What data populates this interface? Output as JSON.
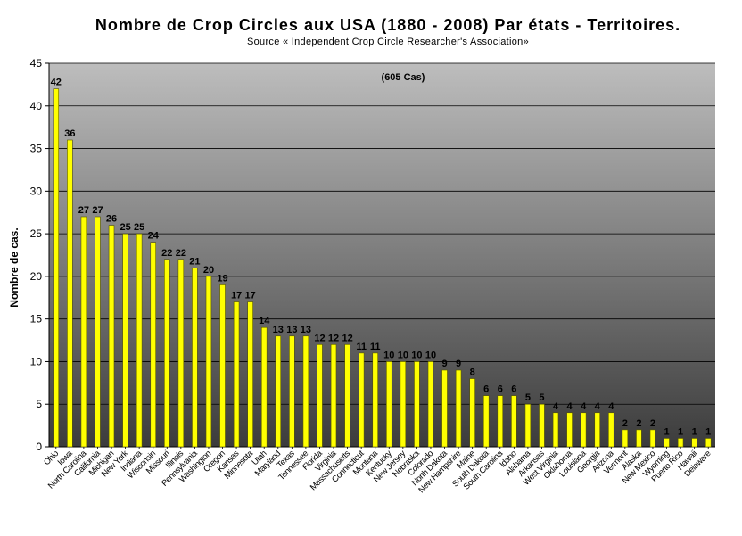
{
  "chart_data": {
    "type": "bar",
    "title": "Nombre de Crop Circles aux USA (1880 - 2008) Par états - Territoires.",
    "subtitle": "Source « Independent Crop Circle Researcher's Association»",
    "annotation": "(605 Cas)",
    "xlabel": "",
    "ylabel": "Nombre de cas.",
    "ylim": [
      0,
      45
    ],
    "yticks": [
      0,
      5,
      10,
      15,
      20,
      25,
      30,
      35,
      40,
      45
    ],
    "grid": true,
    "colors": {
      "bar": "#ffff00",
      "bar_edge": "#555500",
      "plot_top": "#bdbdbd",
      "plot_bottom": "#3c3c3c"
    },
    "categories": [
      "Ohio",
      "Iowa",
      "North Carolina",
      "California",
      "Michigan",
      "New York",
      "Indiana",
      "Wisconsin",
      "Missouri",
      "Illinois",
      "Pennsylvania",
      "Washington",
      "Oregon",
      "Kansas",
      "Minnesota",
      "Utah",
      "Maryland",
      "Texas",
      "Tennessee",
      "Florida",
      "Virginia",
      "Massachusetts",
      "Connecticut",
      "Montana",
      "Kentucky",
      "New Jersey",
      "Nebraska",
      "Colorado",
      "North Dakota",
      "New Hampshire",
      "Maine",
      "South Dakota",
      "South Carolina",
      "Idaho",
      "Alabama",
      "Arkansas",
      "West Virginia",
      "Oklahoma",
      "Louisiana",
      "Georgia",
      "Arizona",
      "Vermont",
      "Alaska",
      "New Mexico",
      "Wyoming",
      "Puerto Rico",
      "Hawaii",
      "Delaware"
    ],
    "values": [
      42,
      36,
      27,
      27,
      26,
      25,
      25,
      24,
      22,
      22,
      21,
      20,
      19,
      17,
      17,
      14,
      13,
      13,
      13,
      12,
      12,
      12,
      11,
      11,
      10,
      10,
      10,
      10,
      9,
      9,
      8,
      6,
      6,
      6,
      5,
      5,
      4,
      4,
      4,
      4,
      4,
      2,
      2,
      2,
      1,
      1,
      1,
      1
    ]
  }
}
